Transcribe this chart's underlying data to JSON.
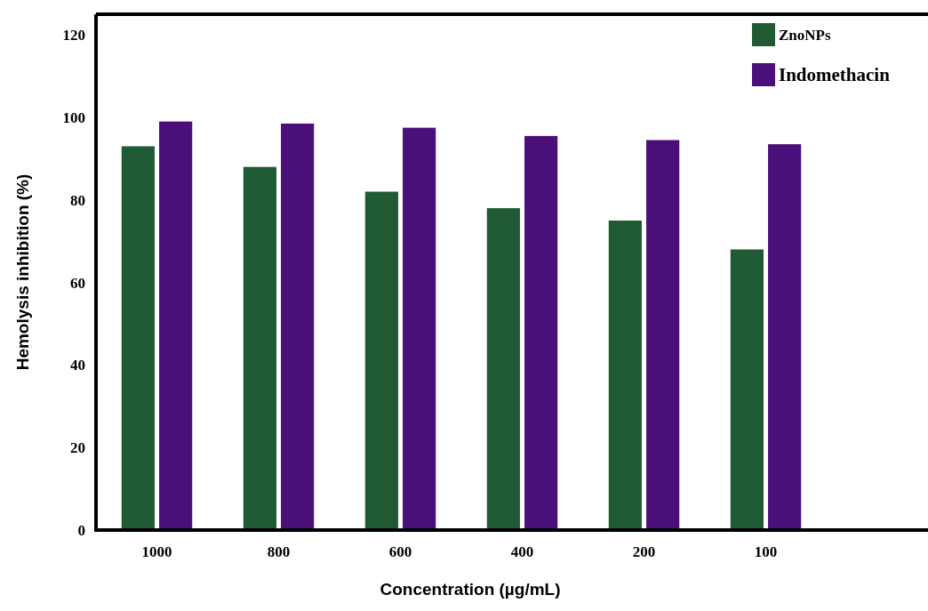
{
  "chart_data": {
    "type": "bar",
    "xlabel": "Concentration (µg/mL)",
    "ylabel": "Hemolysis inhibition (%)",
    "categories": [
      "1000",
      "800",
      "600",
      "400",
      "200",
      "100"
    ],
    "series": [
      {
        "name": "ZnoNPs",
        "color": "#1f5a34",
        "values": [
          93,
          88,
          82,
          78,
          75,
          68
        ]
      },
      {
        "name": "Indomethacin",
        "color": "#4b0f7a",
        "values": [
          99,
          98.5,
          97.5,
          95.5,
          94.5,
          93.5
        ]
      }
    ],
    "ylim": [
      0,
      125
    ],
    "yticks": [
      0,
      20,
      40,
      60,
      80,
      100,
      120
    ],
    "grid": false,
    "legend": "top right"
  }
}
